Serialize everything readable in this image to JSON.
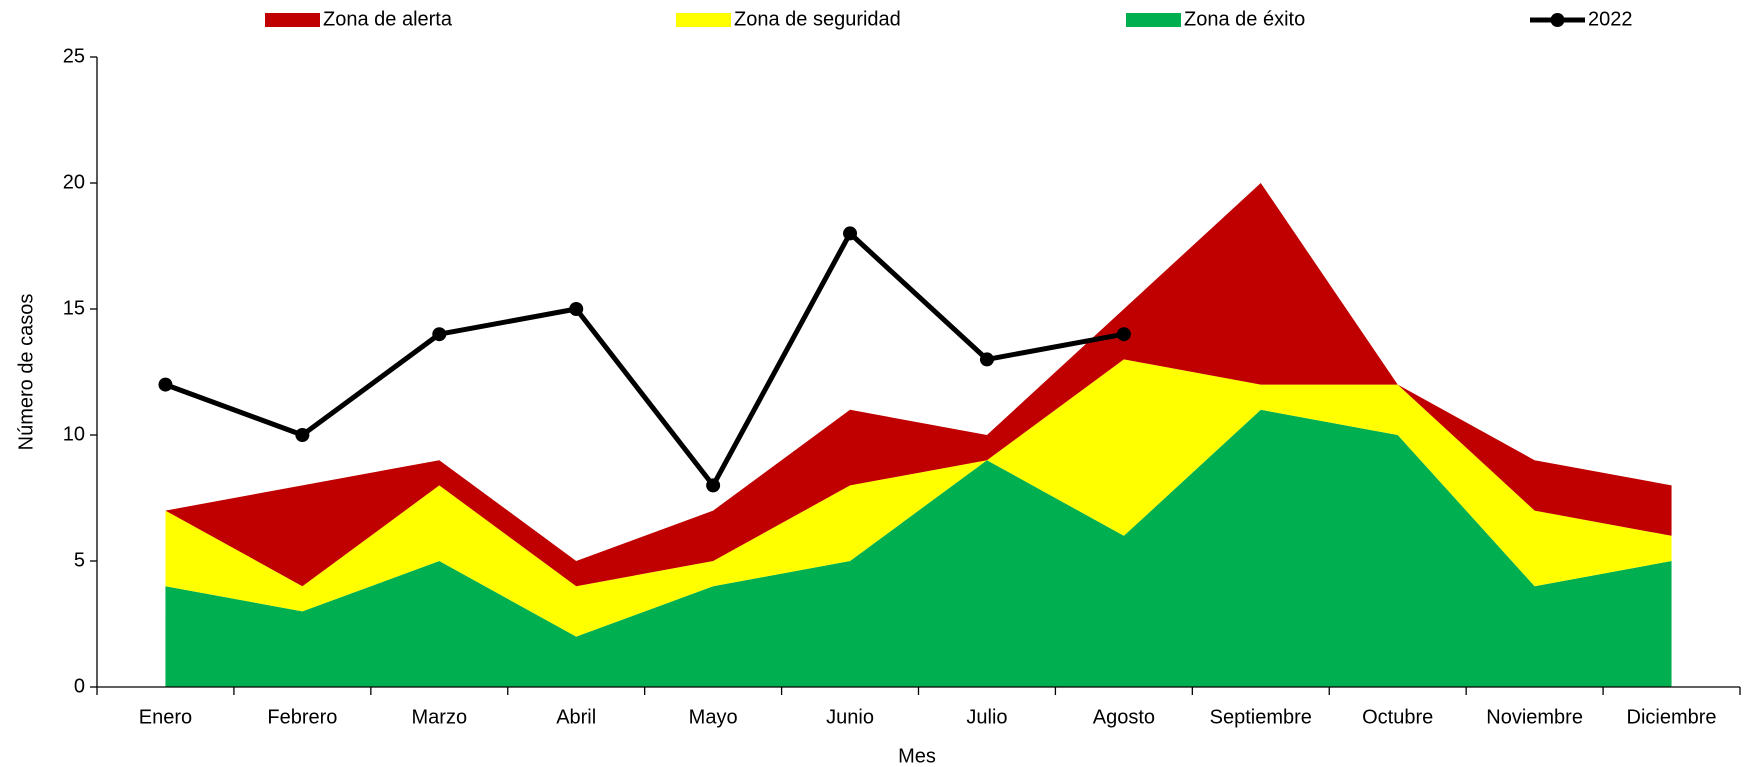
{
  "chart_data": {
    "type": "stacked_area_line",
    "x_label": "Mes",
    "y_label": "Número de casos",
    "categories": [
      "Enero",
      "Febrero",
      "Marzo",
      "Abril",
      "Mayo",
      "Junio",
      "Julio",
      "Agosto",
      "Septiembre",
      "Octubre",
      "Noviembre",
      "Diciembre"
    ],
    "series": [
      {
        "name": "Zona de éxito",
        "color": "#00b050",
        "kind": "area",
        "values": [
          4,
          3,
          5,
          2,
          4,
          5,
          9,
          6,
          11,
          10,
          4,
          5
        ]
      },
      {
        "name": "Zona de seguridad",
        "color": "#ffff00",
        "kind": "area",
        "values": [
          3,
          1,
          3,
          2,
          1,
          3,
          0,
          7,
          1,
          2,
          3,
          1
        ]
      },
      {
        "name": "Zona de alerta",
        "color": "#c00000",
        "kind": "area",
        "values": [
          0,
          4,
          1,
          1,
          2,
          3,
          1,
          2,
          8,
          0,
          2,
          2
        ]
      },
      {
        "name": "2022",
        "color": "#000000",
        "kind": "line",
        "values": [
          12,
          10,
          14,
          15,
          8,
          18,
          13,
          14,
          null,
          null,
          null,
          null
        ]
      }
    ],
    "legend_order": [
      2,
      1,
      0,
      3
    ],
    "ylim": [
      0,
      25
    ],
    "yticks": [
      0,
      5,
      10,
      15,
      20,
      25
    ],
    "grid": false
  }
}
